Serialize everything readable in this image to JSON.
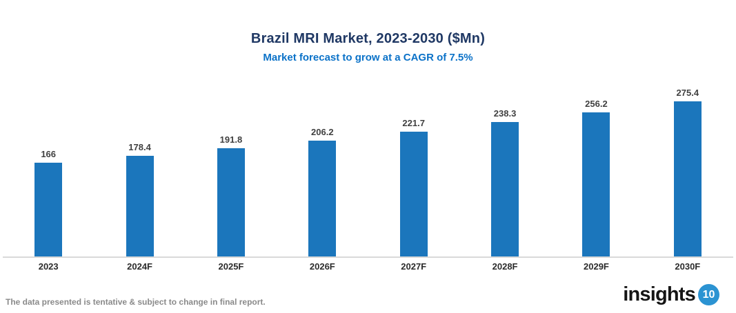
{
  "title": "Brazil MRI Market, 2023-2030 ($Mn)",
  "subtitle": "Market forecast to grow at a CAGR of 7.5%",
  "chart_data": {
    "type": "bar",
    "categories": [
      "2023",
      "2024F",
      "2025F",
      "2026F",
      "2027F",
      "2028F",
      "2029F",
      "2030F"
    ],
    "values": [
      166,
      178.4,
      191.8,
      206.2,
      221.7,
      238.3,
      256.2,
      275.4
    ],
    "value_labels": [
      "166",
      "178.4",
      "191.8",
      "206.2",
      "221.7",
      "238.3",
      "256.2",
      "275.4"
    ],
    "title": "Brazil MRI Market, 2023-2030 ($Mn)",
    "subtitle": "Market forecast to grow at a CAGR of 7.5%",
    "xlabel": "",
    "ylabel": "",
    "ylim": [
      0,
      300
    ],
    "grid": false,
    "legend_position": "none",
    "bar_color": "#1B76BC",
    "axis_line_color": "#D9D9D9"
  },
  "footer": {
    "disclaimer": "The data presented is tentative & subject to change in final report."
  },
  "logo": {
    "text": "insights",
    "badge": "10",
    "badge_color": "#2B93D2"
  },
  "colors": {
    "title": "#1F3864",
    "subtitle": "#0B72C8",
    "value_label": "#404040",
    "category_label": "#2b2b2b",
    "footer": "#8A8A8A"
  }
}
